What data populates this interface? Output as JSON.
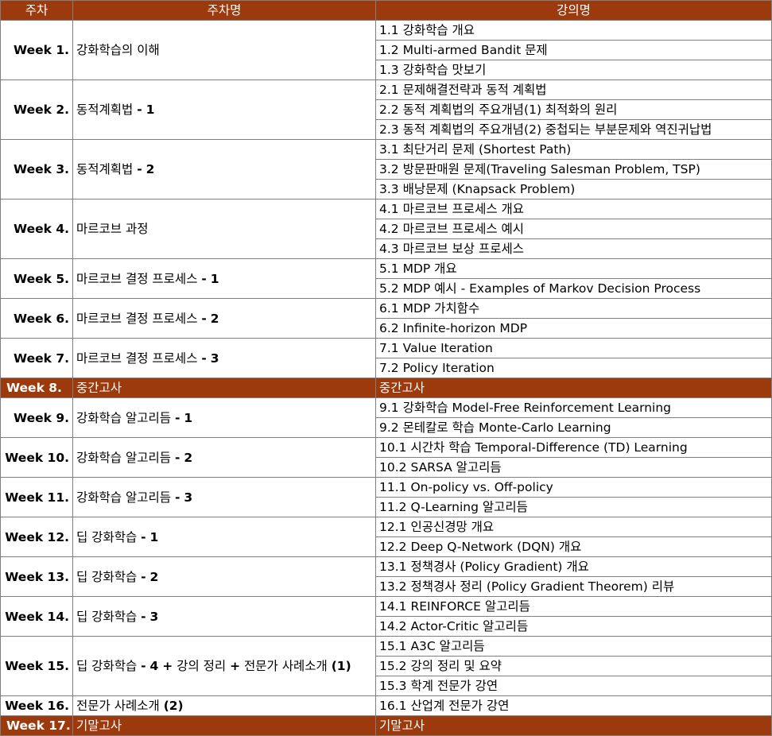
{
  "header": {
    "col_week": "주차",
    "col_title": "주차명",
    "col_lecture": "강의명"
  },
  "rows": [
    {
      "week": "Week 1.",
      "title": "강화학습의 이해",
      "lectures": [
        "1.1 강화학습 개요",
        "1.2 Multi-armed Bandit 문제",
        "1.3 강화학습 맛보기"
      ]
    },
    {
      "week": "Week 2.",
      "title": "동적계획법 - 1",
      "lectures": [
        "2.1 문제해결전략과 동적 계획법",
        "2.2 동적 계획법의 주요개념(1) 최적화의 원리",
        "2.3 동적 계획법의 주요개념(2) 중첩되는 부분문제와 역진귀납법"
      ]
    },
    {
      "week": "Week 3.",
      "title": "동적계획법 - 2",
      "lectures": [
        "3.1 최단거리 문제 (Shortest Path)",
        "3.2 방문판매원 문제(Traveling Salesman Problem, TSP)",
        "3.3 배낭문제 (Knapsack Problem)"
      ]
    },
    {
      "week": "Week 4.",
      "title": "마르코브 과정",
      "lectures": [
        "4.1 마르코브 프로세스 개요",
        "4.2 마르코브 프로세스 예시",
        "4.3 마르코브 보상 프로세스"
      ]
    },
    {
      "week": "Week 5.",
      "title": "마르코브 결정 프로세스 - 1",
      "lectures": [
        "5.1 MDP 개요",
        "5.2 MDP 예시 - Examples of Markov Decision Process"
      ]
    },
    {
      "week": "Week 6.",
      "title": "마르코브 결정 프로세스 - 2",
      "lectures": [
        "6.1 MDP 가치함수",
        "6.2 Infinite-horizon MDP"
      ]
    },
    {
      "week": "Week 7.",
      "title": "마르코브 결정 프로세스 - 3",
      "lectures": [
        "7.1 Value Iteration",
        "7.2 Policy Iteration"
      ]
    },
    {
      "week": "Week 8.",
      "title": "중간고사",
      "lectures": [
        "중간고사"
      ],
      "exam": true
    },
    {
      "week": "Week 9.",
      "title": "강화학습 알고리듬 - 1",
      "lectures": [
        "9.1 강화학습 Model-Free Reinforcement Learning",
        "9.2 몬테칼로 학습 Monte-Carlo Learning"
      ]
    },
    {
      "week": "Week 10.",
      "title": "강화학습 알고리듬 - 2",
      "lectures": [
        "10.1 시간차 학습 Temporal-Difference (TD) Learning",
        "10.2 SARSA 알고리듬"
      ]
    },
    {
      "week": "Week 11.",
      "title": "강화학습 알고리듬 - 3",
      "lectures": [
        "11.1 On-policy vs. Off-policy",
        "11.2 Q-Learning 알고리듬"
      ]
    },
    {
      "week": "Week 12.",
      "title": "딥 강화학습 - 1",
      "lectures": [
        "12.1 인공신경망 개요",
        "12.2 Deep Q-Network (DQN) 개요"
      ]
    },
    {
      "week": "Week 13.",
      "title": "딥 강화학습 - 2",
      "lectures": [
        "13.1 정책경사 (Policy Gradient) 개요",
        "13.2 정책경사 정리 (Policy Gradient Theorem) 리뷰"
      ]
    },
    {
      "week": "Week 14.",
      "title": "딥 강화학습 - 3",
      "lectures": [
        "14.1 REINFORCE 알고리듬",
        "14.2 Actor-Critic 알고리듬"
      ]
    },
    {
      "week": "Week 15.",
      "title": "딥 강화학습 - 4 + 강의 정리 + 전문가 사례소개 (1)",
      "lectures": [
        "15.1 A3C 알고리듬",
        "15.2 강의 정리 및 요약",
        "15.3 학계 전문가 강연"
      ]
    },
    {
      "week": "Week 16.",
      "title": "전문가 사례소개 (2)",
      "lectures": [
        "16.1 산업계 전문가 강연"
      ]
    },
    {
      "week": "Week 17.",
      "title": "기말고사",
      "lectures": [
        "기말고사"
      ],
      "exam": true
    }
  ],
  "colors": {
    "header_bg": "#9c3a0e",
    "exam_bg": "#9c3a0e",
    "border": "#7f7f7f"
  }
}
